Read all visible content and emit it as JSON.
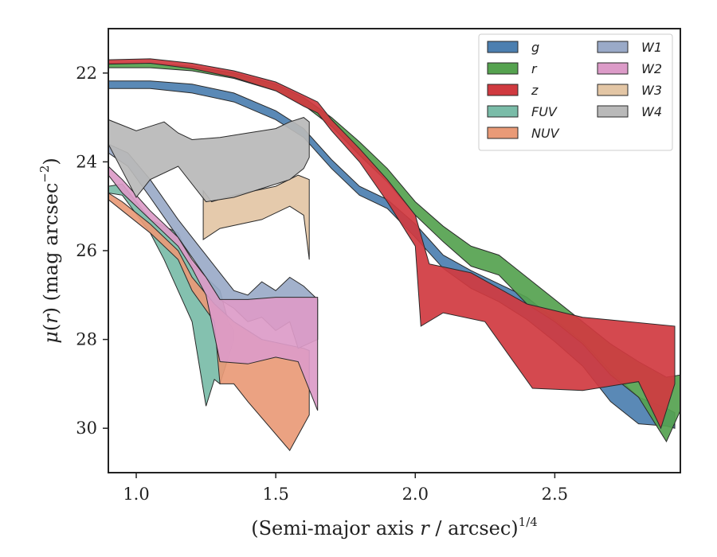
{
  "chart_data": {
    "type": "area",
    "xlabel": "(Semi-major axis r / arcsec)",
    "xlabel_var": "r",
    "xlabel_exp": "1/4",
    "ylabel": "μ(r) (mag arcsec",
    "ylabel_var": "r",
    "ylabel_exp": "−2",
    "ylabel_close": ")",
    "xlim": [
      0.9,
      2.95
    ],
    "ylim": [
      31.0,
      21.0
    ],
    "y_inverted": true,
    "xticks": [
      1.0,
      1.5,
      2.0,
      2.5
    ],
    "xtick_labels": [
      "1.0",
      "1.5",
      "2.0",
      "2.5"
    ],
    "yticks": [
      22,
      24,
      26,
      28,
      30
    ],
    "ytick_labels": [
      "22",
      "24",
      "26",
      "28",
      "30"
    ],
    "grid": false,
    "legend": {
      "placement": "top-right",
      "columns": 2
    },
    "series": [
      {
        "name": "g",
        "color": "#4c7fb0",
        "upper": [
          [
            0.9,
            22.18
          ],
          [
            1.05,
            22.18
          ],
          [
            1.2,
            22.25
          ],
          [
            1.35,
            22.45
          ],
          [
            1.5,
            22.85
          ],
          [
            1.6,
            23.25
          ],
          [
            1.7,
            23.95
          ],
          [
            1.8,
            24.55
          ],
          [
            1.9,
            24.85
          ],
          [
            2.0,
            25.4
          ],
          [
            2.1,
            26.1
          ],
          [
            2.2,
            26.45
          ],
          [
            2.3,
            26.75
          ],
          [
            2.4,
            27.05
          ],
          [
            2.5,
            27.55
          ],
          [
            2.6,
            28.05
          ],
          [
            2.7,
            28.7
          ],
          [
            2.8,
            29.3
          ],
          [
            2.9,
            29.55
          ],
          [
            2.93,
            29.65
          ]
        ],
        "lower": [
          [
            0.9,
            22.35
          ],
          [
            1.05,
            22.35
          ],
          [
            1.2,
            22.45
          ],
          [
            1.35,
            22.65
          ],
          [
            1.5,
            23.05
          ],
          [
            1.6,
            23.45
          ],
          [
            1.7,
            24.15
          ],
          [
            1.8,
            24.75
          ],
          [
            1.9,
            25.05
          ],
          [
            2.0,
            25.7
          ],
          [
            2.1,
            26.4
          ],
          [
            2.2,
            26.85
          ],
          [
            2.3,
            27.15
          ],
          [
            2.4,
            27.55
          ],
          [
            2.5,
            28.05
          ],
          [
            2.6,
            28.6
          ],
          [
            2.7,
            29.4
          ],
          [
            2.8,
            29.9
          ],
          [
            2.9,
            29.95
          ],
          [
            2.93,
            30.0
          ]
        ]
      },
      {
        "name": "r",
        "color": "#55a24f",
        "upper": [
          [
            0.9,
            21.78
          ],
          [
            1.05,
            21.78
          ],
          [
            1.2,
            21.85
          ],
          [
            1.35,
            22.0
          ],
          [
            1.5,
            22.25
          ],
          [
            1.6,
            22.55
          ],
          [
            1.7,
            23.0
          ],
          [
            1.8,
            23.55
          ],
          [
            1.9,
            24.15
          ],
          [
            2.0,
            24.9
          ],
          [
            2.1,
            25.45
          ],
          [
            2.2,
            25.9
          ],
          [
            2.3,
            26.1
          ],
          [
            2.4,
            26.6
          ],
          [
            2.5,
            27.1
          ],
          [
            2.6,
            27.6
          ],
          [
            2.7,
            28.1
          ],
          [
            2.8,
            28.5
          ],
          [
            2.9,
            28.85
          ],
          [
            2.95,
            28.8
          ]
        ],
        "lower": [
          [
            0.9,
            21.88
          ],
          [
            1.05,
            21.88
          ],
          [
            1.2,
            21.95
          ],
          [
            1.35,
            22.12
          ],
          [
            1.5,
            22.4
          ],
          [
            1.6,
            22.72
          ],
          [
            1.7,
            23.2
          ],
          [
            1.8,
            23.85
          ],
          [
            1.9,
            24.45
          ],
          [
            2.0,
            25.2
          ],
          [
            2.1,
            25.8
          ],
          [
            2.2,
            26.35
          ],
          [
            2.3,
            26.55
          ],
          [
            2.4,
            27.2
          ],
          [
            2.5,
            27.6
          ],
          [
            2.6,
            28.1
          ],
          [
            2.7,
            28.8
          ],
          [
            2.8,
            29.3
          ],
          [
            2.9,
            30.3
          ],
          [
            2.95,
            29.6
          ]
        ]
      },
      {
        "name": "z",
        "color": "#d03a40",
        "upper": [
          [
            0.9,
            21.7
          ],
          [
            1.05,
            21.68
          ],
          [
            1.2,
            21.78
          ],
          [
            1.35,
            21.95
          ],
          [
            1.5,
            22.2
          ],
          [
            1.6,
            22.5
          ],
          [
            1.65,
            22.65
          ],
          [
            1.7,
            23.05
          ],
          [
            1.8,
            23.7
          ],
          [
            1.9,
            24.4
          ],
          [
            2.0,
            25.2
          ],
          [
            2.05,
            26.3
          ],
          [
            2.2,
            26.5
          ],
          [
            2.4,
            27.2
          ],
          [
            2.6,
            27.5
          ],
          [
            2.93,
            27.7
          ]
        ],
        "lower": [
          [
            0.9,
            21.8
          ],
          [
            1.05,
            21.78
          ],
          [
            1.2,
            21.9
          ],
          [
            1.35,
            22.1
          ],
          [
            1.5,
            22.4
          ],
          [
            1.6,
            22.75
          ],
          [
            1.65,
            22.9
          ],
          [
            1.7,
            23.3
          ],
          [
            1.8,
            24.0
          ],
          [
            1.9,
            24.9
          ],
          [
            2.0,
            25.9
          ],
          [
            2.02,
            27.7
          ],
          [
            2.1,
            27.4
          ],
          [
            2.25,
            27.6
          ],
          [
            2.42,
            29.1
          ],
          [
            2.6,
            29.15
          ],
          [
            2.8,
            28.95
          ],
          [
            2.88,
            30.0
          ],
          [
            2.93,
            29.0
          ]
        ]
      },
      {
        "name": "FUV",
        "color": "#7abca8",
        "upper": [
          [
            0.9,
            24.55
          ],
          [
            0.95,
            24.5
          ],
          [
            1.05,
            25.3
          ],
          [
            1.15,
            25.6
          ],
          [
            1.2,
            26.3
          ],
          [
            1.3,
            26.9
          ],
          [
            1.33,
            27.6
          ],
          [
            1.35,
            27.8
          ]
        ],
        "lower": [
          [
            0.9,
            24.7
          ],
          [
            0.95,
            24.75
          ],
          [
            1.05,
            25.6
          ],
          [
            1.1,
            26.2
          ],
          [
            1.2,
            27.6
          ],
          [
            1.25,
            29.5
          ],
          [
            1.28,
            28.9
          ],
          [
            1.3,
            29.0
          ],
          [
            1.35,
            28.0
          ]
        ]
      },
      {
        "name": "NUV",
        "color": "#e99a77",
        "upper": [
          [
            0.9,
            24.7
          ],
          [
            0.95,
            24.9
          ],
          [
            1.05,
            25.4
          ],
          [
            1.15,
            26.0
          ],
          [
            1.2,
            26.6
          ],
          [
            1.28,
            27.2
          ],
          [
            1.35,
            27.6
          ],
          [
            1.45,
            28.0
          ],
          [
            1.6,
            28.2
          ],
          [
            1.62,
            28.25
          ]
        ],
        "lower": [
          [
            0.9,
            24.85
          ],
          [
            0.95,
            25.1
          ],
          [
            1.05,
            25.6
          ],
          [
            1.15,
            26.2
          ],
          [
            1.2,
            26.9
          ],
          [
            1.28,
            27.6
          ],
          [
            1.3,
            29.0
          ],
          [
            1.35,
            29.0
          ],
          [
            1.4,
            29.4
          ],
          [
            1.55,
            30.5
          ],
          [
            1.62,
            29.7
          ]
        ]
      },
      {
        "name": "W1",
        "color": "#9aaac8",
        "upper": [
          [
            0.9,
            23.6
          ],
          [
            0.97,
            23.8
          ],
          [
            1.05,
            24.4
          ],
          [
            1.15,
            25.3
          ],
          [
            1.25,
            26.1
          ],
          [
            1.3,
            26.5
          ],
          [
            1.35,
            26.9
          ],
          [
            1.4,
            27.0
          ],
          [
            1.45,
            26.7
          ],
          [
            1.5,
            26.9
          ],
          [
            1.55,
            26.6
          ],
          [
            1.6,
            26.8
          ],
          [
            1.65,
            27.1
          ]
        ],
        "lower": [
          [
            0.9,
            23.8
          ],
          [
            0.97,
            24.1
          ],
          [
            1.05,
            24.8
          ],
          [
            1.15,
            25.7
          ],
          [
            1.25,
            26.6
          ],
          [
            1.3,
            27.1
          ],
          [
            1.35,
            27.3
          ],
          [
            1.4,
            27.6
          ],
          [
            1.45,
            27.5
          ],
          [
            1.5,
            27.8
          ],
          [
            1.55,
            27.6
          ],
          [
            1.58,
            28.2
          ],
          [
            1.65,
            28.0
          ]
        ]
      },
      {
        "name": "W2",
        "color": "#dc9bc8",
        "upper": [
          [
            0.9,
            24.1
          ],
          [
            0.95,
            24.4
          ],
          [
            1.05,
            25.1
          ],
          [
            1.15,
            25.7
          ],
          [
            1.2,
            26.2
          ],
          [
            1.25,
            26.6
          ],
          [
            1.3,
            27.1
          ],
          [
            1.4,
            27.1
          ],
          [
            1.5,
            27.05
          ],
          [
            1.6,
            27.05
          ],
          [
            1.65,
            27.05
          ]
        ],
        "lower": [
          [
            0.9,
            24.3
          ],
          [
            0.95,
            24.7
          ],
          [
            1.05,
            25.3
          ],
          [
            1.15,
            25.9
          ],
          [
            1.2,
            26.4
          ],
          [
            1.25,
            27.0
          ],
          [
            1.3,
            28.5
          ],
          [
            1.4,
            28.55
          ],
          [
            1.5,
            28.4
          ],
          [
            1.58,
            28.5
          ],
          [
            1.65,
            29.6
          ]
        ]
      },
      {
        "name": "W3",
        "color": "#e3c6a5",
        "upper": [
          [
            1.24,
            24.65
          ],
          [
            1.27,
            24.9
          ],
          [
            1.35,
            24.75
          ],
          [
            1.5,
            24.55
          ],
          [
            1.58,
            24.3
          ],
          [
            1.62,
            24.4
          ]
        ],
        "lower": [
          [
            1.24,
            25.75
          ],
          [
            1.3,
            25.5
          ],
          [
            1.45,
            25.3
          ],
          [
            1.55,
            25.0
          ],
          [
            1.6,
            25.2
          ],
          [
            1.62,
            26.2
          ]
        ]
      },
      {
        "name": "W4",
        "color": "#b9b9b9",
        "upper": [
          [
            0.9,
            23.05
          ],
          [
            1.0,
            23.3
          ],
          [
            1.05,
            23.2
          ],
          [
            1.1,
            23.1
          ],
          [
            1.15,
            23.35
          ],
          [
            1.2,
            23.5
          ],
          [
            1.3,
            23.45
          ],
          [
            1.4,
            23.35
          ],
          [
            1.5,
            23.25
          ],
          [
            1.55,
            23.1
          ],
          [
            1.6,
            23.0
          ],
          [
            1.62,
            23.1
          ]
        ],
        "lower": [
          [
            0.9,
            23.6
          ],
          [
            1.0,
            24.8
          ],
          [
            1.05,
            24.4
          ],
          [
            1.15,
            24.1
          ],
          [
            1.25,
            24.9
          ],
          [
            1.35,
            24.8
          ],
          [
            1.45,
            24.6
          ],
          [
            1.55,
            24.4
          ],
          [
            1.6,
            24.15
          ],
          [
            1.62,
            23.9
          ]
        ]
      }
    ]
  }
}
